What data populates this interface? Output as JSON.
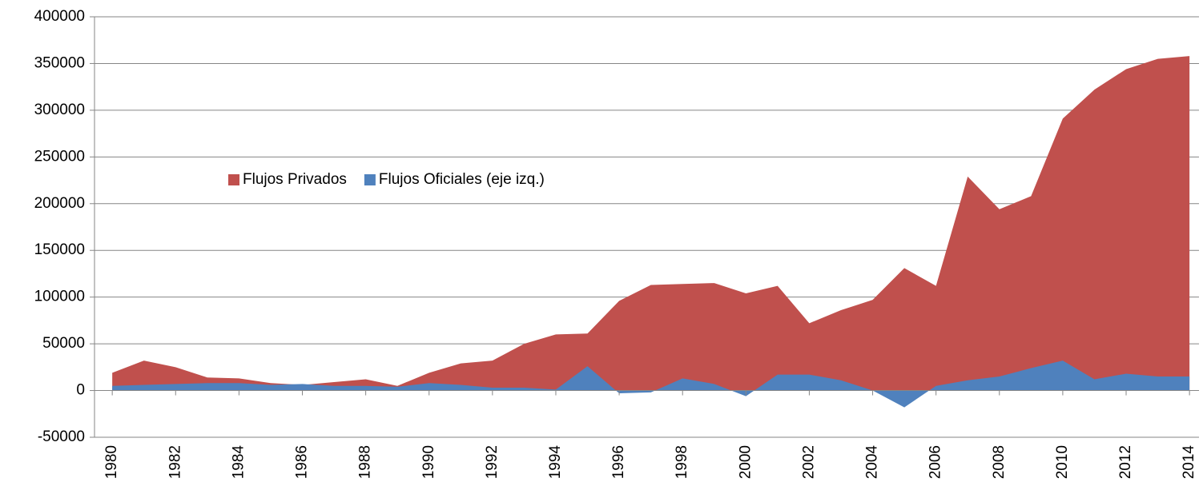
{
  "chart_data": {
    "type": "area",
    "x": [
      1980,
      1981,
      1982,
      1983,
      1984,
      1985,
      1986,
      1987,
      1988,
      1989,
      1990,
      1991,
      1992,
      1993,
      1994,
      1995,
      1996,
      1997,
      1998,
      1999,
      2000,
      2001,
      2002,
      2003,
      2004,
      2005,
      2006,
      2007,
      2008,
      2009,
      2010,
      2011,
      2012,
      2013,
      2014
    ],
    "series": [
      {
        "name": "Flujos Privados",
        "color": "#c0504d",
        "values": [
          19000,
          32000,
          25000,
          14000,
          13000,
          8000,
          6000,
          9000,
          12000,
          5000,
          19000,
          29000,
          32000,
          50000,
          60000,
          61000,
          96000,
          113000,
          114000,
          115000,
          104000,
          112000,
          72000,
          86000,
          97000,
          131000,
          112000,
          229000,
          194000,
          208000,
          291000,
          322000,
          344000,
          355000,
          358000
        ]
      },
      {
        "name": "Flujos Oficiales (eje izq.)",
        "color": "#4f81bd",
        "values": [
          5000,
          6000,
          7000,
          8000,
          8000,
          6000,
          7000,
          5000,
          5000,
          4000,
          8000,
          6000,
          3000,
          3000,
          1000,
          26000,
          -3000,
          -2000,
          13000,
          7000,
          -6000,
          17000,
          17000,
          11000,
          0,
          -18000,
          5000,
          11000,
          15000,
          24000,
          32000,
          12000,
          18000,
          15000,
          15000
        ]
      }
    ],
    "xlim": [
      1979.44,
      2014.3
    ],
    "xticks": [
      1980,
      1982,
      1984,
      1986,
      1988,
      1990,
      1992,
      1994,
      1996,
      1998,
      2000,
      2002,
      2004,
      2006,
      2008,
      2010,
      2012,
      2014
    ],
    "ylim": [
      -50000,
      400000
    ],
    "yticks": [
      -50000,
      0,
      50000,
      100000,
      150000,
      200000,
      250000,
      300000,
      350000,
      400000
    ],
    "grid": true,
    "legend": "center-left"
  }
}
